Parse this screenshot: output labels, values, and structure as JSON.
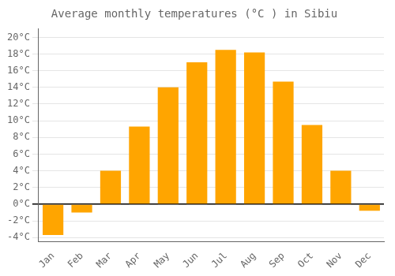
{
  "chart_data": {
    "type": "bar",
    "title": "Average monthly temperatures (°C ) in Sibiu",
    "categories": [
      "Jan",
      "Feb",
      "Mar",
      "Apr",
      "May",
      "Jun",
      "Jul",
      "Aug",
      "Sep",
      "Oct",
      "Nov",
      "Dec"
    ],
    "values": [
      -3.7,
      -1.0,
      4.0,
      9.3,
      14.0,
      17.0,
      18.5,
      18.2,
      14.7,
      9.5,
      4.0,
      -0.8
    ],
    "color": "#FFA500",
    "ylim": [
      -4.5,
      21
    ],
    "yticks": [
      {
        "value": -4,
        "label": "-4°C"
      },
      {
        "value": -2,
        "label": "-2°C"
      },
      {
        "value": 0,
        "label": "0°C"
      },
      {
        "value": 2,
        "label": "2°C"
      },
      {
        "value": 4,
        "label": "4°C"
      },
      {
        "value": 6,
        "label": "6°C"
      },
      {
        "value": 8,
        "label": "8°C"
      },
      {
        "value": 10,
        "label": "10°C"
      },
      {
        "value": 12,
        "label": "12°C"
      },
      {
        "value": 14,
        "label": "14°C"
      },
      {
        "value": 16,
        "label": "16°C"
      },
      {
        "value": 18,
        "label": "18°C"
      },
      {
        "value": 20,
        "label": "20°C"
      }
    ],
    "grid": true
  }
}
